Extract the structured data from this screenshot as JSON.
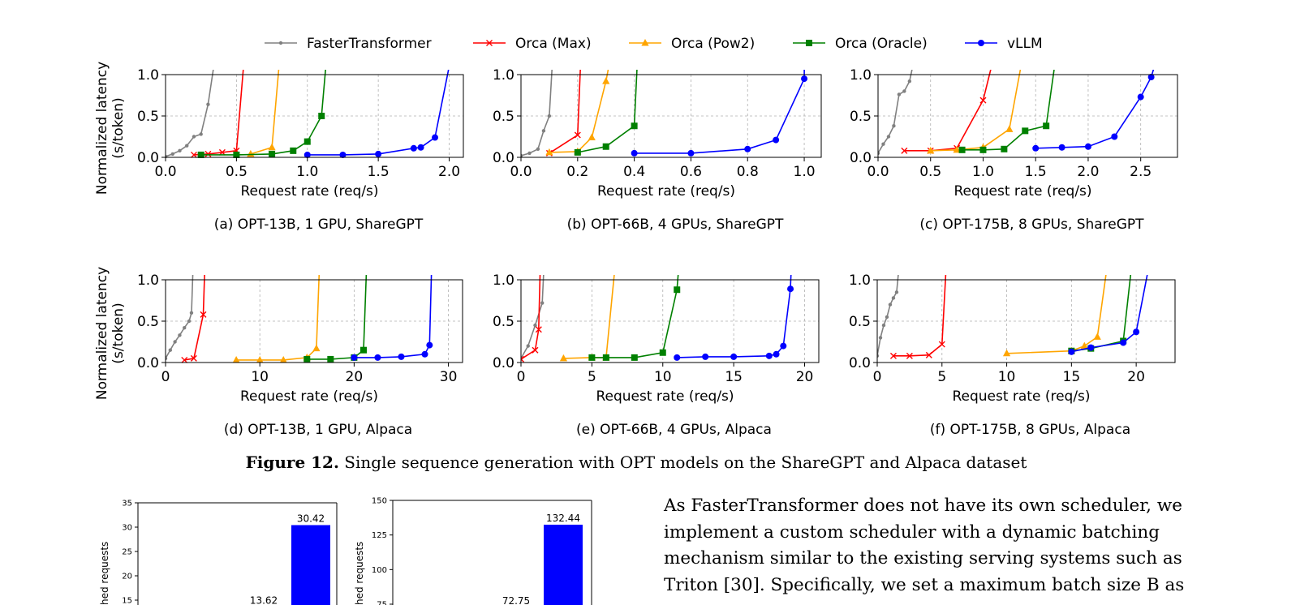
{
  "legend": [
    {
      "name": "FasterTransformer",
      "color": "#808080",
      "marker": "dot"
    },
    {
      "name": "Orca (Max)",
      "color": "#ff0000",
      "marker": "x"
    },
    {
      "name": "Orca (Pow2)",
      "color": "#ffa500",
      "marker": "triangle"
    },
    {
      "name": "Orca (Oracle)",
      "color": "#008000",
      "marker": "square"
    },
    {
      "name": "vLLM",
      "color": "#0000ff",
      "marker": "circle"
    }
  ],
  "ylabel_line1": "Normalized latency",
  "ylabel_line2": "(s/token)",
  "figure_caption": {
    "label": "Figure 12.",
    "text": " Single sequence generation with OPT models on the ShareGPT and Alpaca dataset"
  },
  "paragraph_lines": [
    "As FasterTransformer does not have its own scheduler, we",
    "implement a custom scheduler with a dynamic batching",
    "mechanism similar to the existing serving systems such as",
    "Triton [30]. Specifically, we set a maximum batch size B as"
  ],
  "chart_data": [
    {
      "type": "line",
      "caption": "(a) OPT-13B, 1 GPU, ShareGPT",
      "xlabel": "Request rate (req/s)",
      "xlim": [
        0,
        2.1
      ],
      "ylim": [
        0,
        1.0
      ],
      "xticks": [
        0.0,
        0.5,
        1.0,
        1.5,
        2.0
      ],
      "xtick_labels": [
        "0.0",
        "0.5",
        "1.0",
        "1.5",
        "2.0"
      ],
      "yticks": [
        0.0,
        0.5,
        1.0
      ],
      "ytick_labels": [
        "0.0",
        "0.5",
        "1.0"
      ],
      "grid": true,
      "series": [
        {
          "name": "FasterTransformer",
          "x": [
            0.0,
            0.05,
            0.1,
            0.15,
            0.2,
            0.25,
            0.3
          ],
          "y": [
            0.01,
            0.04,
            0.08,
            0.14,
            0.25,
            0.28,
            0.64
          ],
          "tail_x": 0.34
        },
        {
          "name": "Orca (Max)",
          "x": [
            0.2,
            0.3,
            0.4,
            0.5
          ],
          "y": [
            0.03,
            0.04,
            0.06,
            0.08
          ],
          "tail_x": 0.55
        },
        {
          "name": "Orca (Pow2)",
          "x": [
            0.6,
            0.75
          ],
          "y": [
            0.04,
            0.12
          ],
          "tail_x": 0.8
        },
        {
          "name": "Orca (Oracle)",
          "x": [
            0.25,
            0.5,
            0.75,
            0.9,
            1.0,
            1.1
          ],
          "y": [
            0.03,
            0.03,
            0.04,
            0.08,
            0.19,
            0.5
          ],
          "tail_x": 1.13
        },
        {
          "name": "vLLM",
          "x": [
            1.0,
            1.25,
            1.5,
            1.75,
            1.8,
            1.9
          ],
          "y": [
            0.03,
            0.03,
            0.04,
            0.11,
            0.12,
            0.24
          ],
          "tail_x": 2.0
        }
      ]
    },
    {
      "type": "line",
      "caption": "(b) OPT-66B, 4 GPUs, ShareGPT",
      "xlabel": "Request rate (req/s)",
      "xlim": [
        0,
        1.06
      ],
      "ylim": [
        0,
        1.0
      ],
      "xticks": [
        0.0,
        0.2,
        0.4,
        0.6,
        0.8,
        1.0
      ],
      "xtick_labels": [
        "0.0",
        "0.2",
        "0.4",
        "0.6",
        "0.8",
        "1.0"
      ],
      "yticks": [
        0.0,
        0.5,
        1.0
      ],
      "ytick_labels": [
        "0.0",
        "0.5",
        "1.0"
      ],
      "grid": true,
      "series": [
        {
          "name": "FasterTransformer",
          "x": [
            0.0,
            0.03,
            0.06,
            0.08,
            0.1
          ],
          "y": [
            0.02,
            0.05,
            0.1,
            0.32,
            0.5
          ],
          "tail_x": 0.11
        },
        {
          "name": "Orca (Max)",
          "x": [
            0.1,
            0.2
          ],
          "y": [
            0.05,
            0.27
          ],
          "tail_x": 0.21
        },
        {
          "name": "Orca (Pow2)",
          "x": [
            0.1,
            0.2,
            0.25,
            0.3
          ],
          "y": [
            0.06,
            0.07,
            0.24,
            0.92
          ],
          "tail_x": 0.31
        },
        {
          "name": "Orca (Oracle)",
          "x": [
            0.2,
            0.3,
            0.4
          ],
          "y": [
            0.06,
            0.13,
            0.38
          ],
          "tail_x": 0.41
        },
        {
          "name": "vLLM",
          "x": [
            0.4,
            0.6,
            0.8,
            0.9,
            1.0
          ],
          "y": [
            0.05,
            0.05,
            0.1,
            0.21,
            0.95
          ],
          "tail_x": 1.0
        }
      ]
    },
    {
      "type": "line",
      "caption": "(c) OPT-175B, 8 GPUs, ShareGPT",
      "xlabel": "Request rate (req/s)",
      "xlim": [
        0,
        2.85
      ],
      "ylim": [
        0,
        1.0
      ],
      "xticks": [
        0.0,
        0.5,
        1.0,
        1.5,
        2.0,
        2.5
      ],
      "xtick_labels": [
        "0.0",
        "0.5",
        "1.0",
        "1.5",
        "2.0",
        "2.5"
      ],
      "yticks": [
        0.0,
        0.5,
        1.0
      ],
      "ytick_labels": [
        "0.0",
        "0.5",
        "1.0"
      ],
      "grid": true,
      "series": [
        {
          "name": "FasterTransformer",
          "x": [
            0.0,
            0.05,
            0.1,
            0.15,
            0.2,
            0.25,
            0.3
          ],
          "y": [
            0.05,
            0.16,
            0.25,
            0.38,
            0.76,
            0.8,
            0.92
          ],
          "tail_x": 0.33
        },
        {
          "name": "Orca (Max)",
          "x": [
            0.25,
            0.5,
            0.75,
            1.0
          ],
          "y": [
            0.08,
            0.08,
            0.11,
            0.69
          ],
          "tail_x": 1.08
        },
        {
          "name": "Orca (Pow2)",
          "x": [
            0.5,
            0.75,
            1.0,
            1.25
          ],
          "y": [
            0.08,
            0.09,
            0.12,
            0.34
          ],
          "tail_x": 1.36
        },
        {
          "name": "Orca (Oracle)",
          "x": [
            0.8,
            1.0,
            1.2,
            1.4,
            1.6
          ],
          "y": [
            0.09,
            0.09,
            0.1,
            0.32,
            0.38
          ],
          "tail_x": 1.68
        },
        {
          "name": "vLLM",
          "x": [
            1.5,
            1.75,
            2.0,
            2.25,
            2.5,
            2.6
          ],
          "y": [
            0.11,
            0.12,
            0.13,
            0.25,
            0.73,
            0.97
          ],
          "tail_x": 2.63
        }
      ]
    },
    {
      "type": "line",
      "caption": "(d) OPT-13B, 1 GPU, Alpaca",
      "xlabel": "Request rate (req/s)",
      "xlim": [
        0,
        31.5
      ],
      "ylim": [
        0,
        1.0
      ],
      "xticks": [
        0,
        10,
        20,
        30
      ],
      "xtick_labels": [
        "0",
        "10",
        "20",
        "30"
      ],
      "yticks": [
        0.0,
        0.5,
        1.0
      ],
      "ytick_labels": [
        "0.0",
        "0.5",
        "1.0"
      ],
      "grid": true,
      "series": [
        {
          "name": "FasterTransformer",
          "x": [
            0.0,
            0.5,
            1.0,
            1.5,
            2.0,
            2.5,
            2.75
          ],
          "y": [
            0.05,
            0.15,
            0.25,
            0.33,
            0.42,
            0.5,
            0.6
          ],
          "tail_x": 2.9
        },
        {
          "name": "Orca (Max)",
          "x": [
            2.0,
            3.0,
            4.0
          ],
          "y": [
            0.03,
            0.05,
            0.58
          ],
          "tail_x": 4.15
        },
        {
          "name": "Orca (Pow2)",
          "x": [
            7.5,
            10.0,
            12.5,
            15.0,
            16.0
          ],
          "y": [
            0.03,
            0.03,
            0.03,
            0.06,
            0.17
          ],
          "tail_x": 16.3
        },
        {
          "name": "Orca (Oracle)",
          "x": [
            15.0,
            17.5,
            20.0,
            21.0
          ],
          "y": [
            0.04,
            0.04,
            0.06,
            0.15
          ],
          "tail_x": 21.3
        },
        {
          "name": "vLLM",
          "x": [
            20.0,
            22.5,
            25.0,
            27.5,
            28.0
          ],
          "y": [
            0.06,
            0.06,
            0.07,
            0.1,
            0.21
          ],
          "tail_x": 28.2
        }
      ]
    },
    {
      "type": "line",
      "caption": "(e) OPT-66B, 4 GPUs, Alpaca",
      "xlabel": "Request rate (req/s)",
      "xlim": [
        0,
        21.0
      ],
      "ylim": [
        0,
        1.0
      ],
      "xticks": [
        0,
        5,
        10,
        15,
        20
      ],
      "xtick_labels": [
        "0",
        "5",
        "10",
        "15",
        "20"
      ],
      "yticks": [
        0.0,
        0.5,
        1.0
      ],
      "ytick_labels": [
        "0.0",
        "0.5",
        "1.0"
      ],
      "grid": true,
      "series": [
        {
          "name": "FasterTransformer",
          "x": [
            0.0,
            0.5,
            1.0,
            1.5
          ],
          "y": [
            0.05,
            0.2,
            0.45,
            0.72
          ],
          "tail_x": 1.6
        },
        {
          "name": "Orca (Max)",
          "x": [
            0.0,
            1.0,
            1.25
          ],
          "y": [
            0.04,
            0.15,
            0.4
          ],
          "tail_x": 1.35
        },
        {
          "name": "Orca (Pow2)",
          "x": [
            3.0,
            5.0,
            6.0
          ],
          "y": [
            0.05,
            0.06,
            0.06
          ],
          "tail_x": 6.6
        },
        {
          "name": "Orca (Oracle)",
          "x": [
            5.0,
            6.0,
            8.0,
            10.0,
            11.0
          ],
          "y": [
            0.06,
            0.06,
            0.06,
            0.12,
            0.88
          ],
          "tail_x": 11.1
        },
        {
          "name": "vLLM",
          "x": [
            11.0,
            13.0,
            15.0,
            17.5,
            18.0,
            18.5,
            19.0
          ],
          "y": [
            0.06,
            0.07,
            0.07,
            0.08,
            0.1,
            0.2,
            0.89
          ],
          "tail_x": 19.05
        }
      ]
    },
    {
      "type": "line",
      "caption": "(f) OPT-175B, 8 GPUs, Alpaca",
      "xlabel": "Request rate (req/s)",
      "xlim": [
        0,
        23.0
      ],
      "ylim": [
        0,
        1.0
      ],
      "xticks": [
        0,
        5,
        10,
        15,
        20
      ],
      "xtick_labels": [
        "0",
        "5",
        "10",
        "15",
        "20"
      ],
      "yticks": [
        0.0,
        0.5,
        1.0
      ],
      "ytick_labels": [
        "0.0",
        "0.5",
        "1.0"
      ],
      "grid": true,
      "series": [
        {
          "name": "FasterTransformer",
          "x": [
            0.0,
            0.25,
            0.5,
            0.75,
            1.0,
            1.25,
            1.5
          ],
          "y": [
            0.08,
            0.3,
            0.45,
            0.55,
            0.7,
            0.78,
            0.85
          ],
          "tail_x": 1.65
        },
        {
          "name": "Orca (Max)",
          "x": [
            1.25,
            2.5,
            4.0,
            5.0
          ],
          "y": [
            0.08,
            0.08,
            0.09,
            0.22
          ],
          "tail_x": 5.3
        },
        {
          "name": "Orca (Pow2)",
          "x": [
            10.0,
            15.0,
            16.0,
            17.0
          ],
          "y": [
            0.11,
            0.14,
            0.2,
            0.31
          ],
          "tail_x": 17.7
        },
        {
          "name": "Orca (Oracle)",
          "x": [
            15.0,
            16.5,
            19.0
          ],
          "y": [
            0.14,
            0.17,
            0.26
          ],
          "tail_x": 19.6
        },
        {
          "name": "vLLM",
          "x": [
            15.0,
            16.5,
            19.0,
            20.0
          ],
          "y": [
            0.13,
            0.18,
            0.24,
            0.37
          ],
          "tail_x": 20.9
        }
      ]
    },
    {
      "type": "bar",
      "ylabel": "hed requests",
      "ylim": [
        0,
        35
      ],
      "yticks": [
        15,
        20,
        25,
        30,
        35
      ],
      "ytick_labels": [
        "15",
        "20",
        "25",
        "30",
        "35"
      ],
      "bars": [
        {
          "value": 13.62,
          "label": "13.62",
          "color": "#008000"
        },
        {
          "value": 30.42,
          "label": "30.42",
          "color": "#0000ff"
        }
      ]
    },
    {
      "type": "bar",
      "ylabel": "hed requests",
      "ylim": [
        0,
        150
      ],
      "yticks": [
        75,
        100,
        125,
        150
      ],
      "ytick_labels": [
        "75",
        "100",
        "125",
        "150"
      ],
      "bars": [
        {
          "value": 72.75,
          "label": "72.75",
          "color": "#008000"
        },
        {
          "value": 132.44,
          "label": "132.44",
          "color": "#0000ff"
        }
      ]
    }
  ]
}
